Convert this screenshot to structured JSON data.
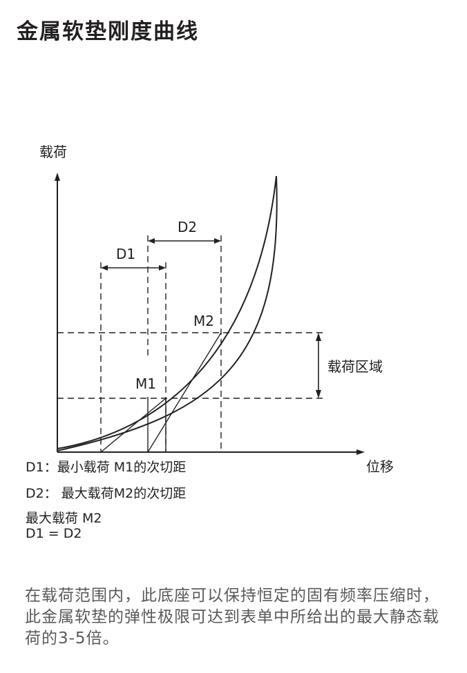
{
  "title": "金属软垫刚度曲线",
  "diagram": {
    "y_axis_label": "载荷",
    "x_axis_label": "位移",
    "d1_label": "D1",
    "d2_label": "D2",
    "m1_label": "M1",
    "m2_label": "M2",
    "load_zone_label": "载荷区域"
  },
  "legend": {
    "d1": "D1：最小载荷 M1的次切距",
    "d2": "D2： 最大载荷M2的次切距",
    "max_load": "最大载荷 M2",
    "equation": "D1 = D2"
  },
  "description": "在载荷范围内，此底座可以保持恒定的固有频率压缩时，此金属软垫的弹性极限可达到表单中所给出的最大静态载荷的3-5倍。",
  "colors": {
    "line": "#231f20",
    "body_text": "#58595b"
  }
}
